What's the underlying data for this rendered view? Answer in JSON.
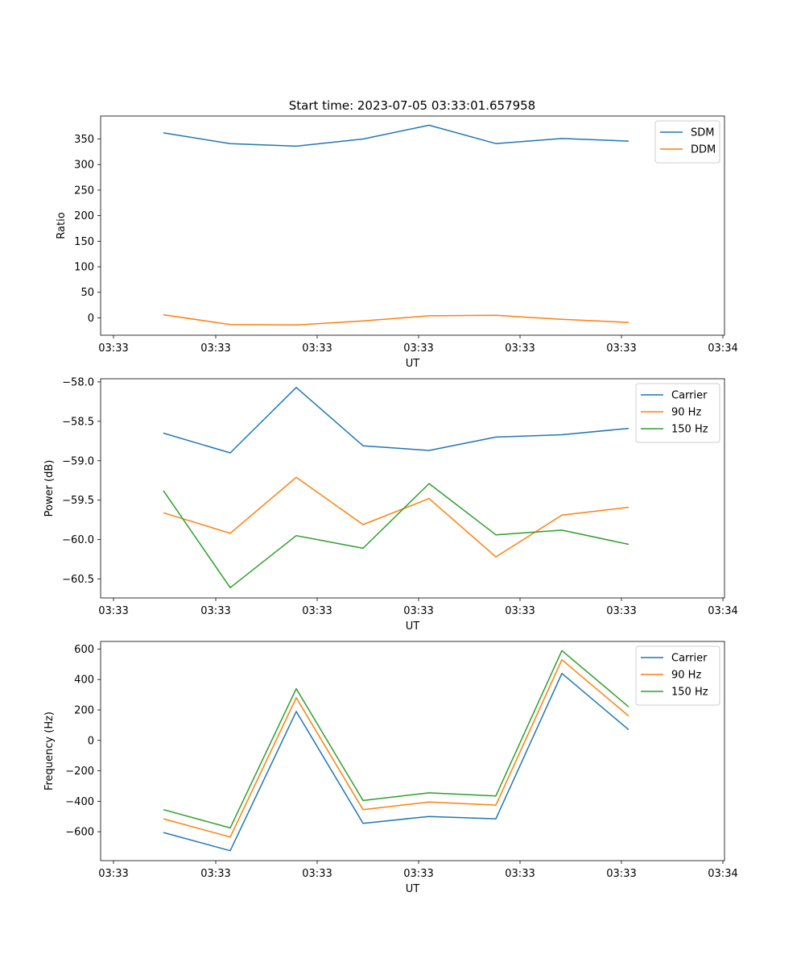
{
  "title": "Start time: 2023-07-05 03:33:01.657958",
  "chart_data": [
    {
      "type": "line",
      "title": "Start time: 2023-07-05 03:33:01.657958",
      "xlabel": "UT",
      "ylabel": "Ratio",
      "x_tick_labels": [
        "03:33",
        "03:33",
        "03:33",
        "03:33",
        "03:33",
        "03:33",
        "03:34"
      ],
      "y_ticks": [
        0,
        50,
        100,
        150,
        200,
        250,
        300,
        350
      ],
      "ylim": [
        -34,
        395
      ],
      "legend_position": "top-right",
      "series": [
        {
          "name": "SDM",
          "color": "#1f77b4",
          "values": [
            362,
            341,
            336,
            350,
            377,
            341,
            351,
            346
          ]
        },
        {
          "name": "DDM",
          "color": "#ff7f0e",
          "values": [
            6,
            -13,
            -14,
            -6,
            4,
            5,
            -3,
            -9
          ]
        }
      ]
    },
    {
      "type": "line",
      "xlabel": "UT",
      "ylabel": "Power (dB)",
      "x_tick_labels": [
        "03:33",
        "03:33",
        "03:33",
        "03:33",
        "03:33",
        "03:33",
        "03:34"
      ],
      "y_ticks": [
        -58.0,
        -58.5,
        -59.0,
        -59.5,
        -60.0,
        -60.5
      ],
      "y_tick_labels": [
        "−58.0",
        "−58.5",
        "−59.0",
        "−59.5",
        "−60.0",
        "−60.5"
      ],
      "ylim": [
        -60.74,
        -57.96
      ],
      "legend_position": "top-right",
      "series": [
        {
          "name": "Carrier",
          "color": "#1f77b4",
          "values": [
            -58.65,
            -58.9,
            -58.07,
            -58.81,
            -58.87,
            -58.7,
            -58.67,
            -58.59
          ]
        },
        {
          "name": "90 Hz",
          "color": "#ff7f0e",
          "values": [
            -59.66,
            -59.92,
            -59.21,
            -59.81,
            -59.48,
            -60.22,
            -59.69,
            -59.59
          ]
        },
        {
          "name": "150 Hz",
          "color": "#2ca02c",
          "values": [
            -59.38,
            -60.61,
            -59.95,
            -60.11,
            -59.29,
            -59.94,
            -59.88,
            -60.06
          ]
        }
      ]
    },
    {
      "type": "line",
      "xlabel": "UT",
      "ylabel": "Frequency (Hz)",
      "x_tick_labels": [
        "03:33",
        "03:33",
        "03:33",
        "03:33",
        "03:33",
        "03:33",
        "03:34"
      ],
      "y_ticks": [
        -600,
        -400,
        -200,
        0,
        200,
        400,
        600
      ],
      "y_tick_labels": [
        "−600",
        "−400",
        "−200",
        "0",
        "200",
        "400",
        "600"
      ],
      "ylim": [
        -790,
        650
      ],
      "legend_position": "top-right",
      "series": [
        {
          "name": "Carrier",
          "color": "#1f77b4",
          "values": [
            -605,
            -725,
            190,
            -545,
            -500,
            -515,
            440,
            70
          ]
        },
        {
          "name": "90 Hz",
          "color": "#ff7f0e",
          "values": [
            -515,
            -635,
            280,
            -455,
            -405,
            -425,
            530,
            160
          ]
        },
        {
          "name": "150 Hz",
          "color": "#2ca02c",
          "values": [
            -455,
            -575,
            340,
            -395,
            -345,
            -365,
            590,
            220
          ]
        }
      ]
    }
  ]
}
